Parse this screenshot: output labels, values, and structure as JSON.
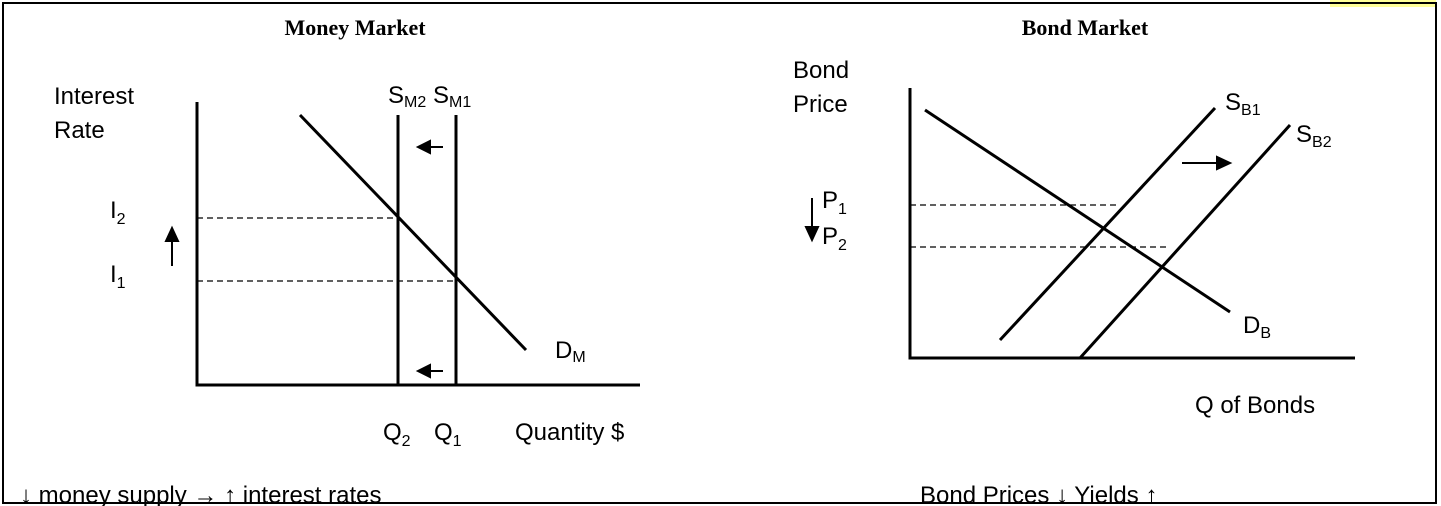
{
  "money_market": {
    "title": "Money Market",
    "y_axis_label": [
      "Interest",
      "Rate"
    ],
    "supply_2": {
      "base": "S",
      "sub": "M2"
    },
    "supply_1": {
      "base": "S",
      "sub": "M1"
    },
    "demand": {
      "base": "D",
      "sub": "M"
    },
    "rate_2": {
      "base": "I",
      "sub": "2"
    },
    "rate_1": {
      "base": "I",
      "sub": "1"
    },
    "quantity_2": {
      "base": "Q",
      "sub": "2"
    },
    "quantity_1": {
      "base": "Q",
      "sub": "1"
    },
    "x_axis_label": "Quantity $",
    "caption": "↓ money supply → ↑ interest rates"
  },
  "bond_market": {
    "title": "Bond Market",
    "y_axis_label": [
      "Bond",
      "Price"
    ],
    "supply_1": {
      "base": "S",
      "sub": "B1"
    },
    "supply_2": {
      "base": "S",
      "sub": "B2"
    },
    "demand": {
      "base": "D",
      "sub": "B"
    },
    "price_1": {
      "base": "P",
      "sub": "1"
    },
    "price_2": {
      "base": "P",
      "sub": "2"
    },
    "x_axis_label": "Q of  Bonds",
    "caption": "Bond Prices ↓ Yields ↑"
  }
}
